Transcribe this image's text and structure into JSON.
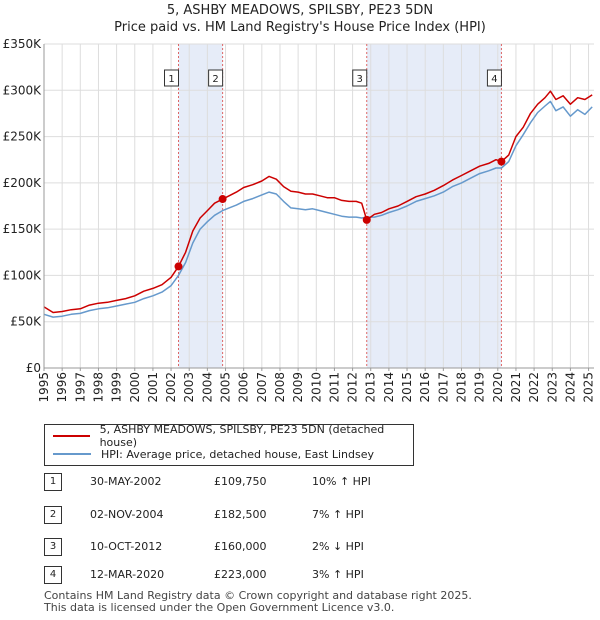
{
  "title": {
    "line1": "5, ASHBY MEADOWS, SPILSBY, PE23 5DN",
    "line2": "Price paid vs. HM Land Registry's House Price Index (HPI)"
  },
  "colors": {
    "property": "#cc0000",
    "hpi": "#6699cc",
    "band": "#e6ecf8",
    "marker_line": "#dd6666"
  },
  "legend": {
    "property_label": "5, ASHBY MEADOWS, SPILSBY, PE23 5DN (detached house)",
    "hpi_label": "HPI: Average price, detached house, East Lindsey"
  },
  "sales": [
    {
      "num": "1",
      "date": "30-MAY-2002",
      "price": "£109,750",
      "hpi": "10% ↑ HPI"
    },
    {
      "num": "2",
      "date": "02-NOV-2004",
      "price": "£182,500",
      "hpi": "7% ↑ HPI"
    },
    {
      "num": "3",
      "date": "10-OCT-2012",
      "price": "£160,000",
      "hpi": "2% ↓ HPI"
    },
    {
      "num": "4",
      "date": "12-MAR-2020",
      "price": "£223,000",
      "hpi": "3% ↑ HPI"
    }
  ],
  "footer": {
    "line1": "Contains HM Land Registry data © Crown copyright and database right 2025.",
    "line2": "This data is licensed under the Open Government Licence v3.0."
  },
  "chart_data": {
    "type": "line",
    "title": "Price paid vs. HM Land Registry's House Price Index (HPI)",
    "xlabel": "",
    "ylabel": "",
    "xlim": [
      1995,
      2025.3
    ],
    "ylim": [
      0,
      350000
    ],
    "x_ticks": [
      "1995",
      "1996",
      "1997",
      "1998",
      "1999",
      "2000",
      "2001",
      "2002",
      "2003",
      "2004",
      "2005",
      "2006",
      "2007",
      "2008",
      "2009",
      "2010",
      "2011",
      "2012",
      "2013",
      "2014",
      "2015",
      "2016",
      "2017",
      "2018",
      "2019",
      "2020",
      "2021",
      "2022",
      "2023",
      "2024",
      "2025"
    ],
    "y_ticks": [
      {
        "value": 0,
        "label": "£0"
      },
      {
        "value": 50000,
        "label": "£50K"
      },
      {
        "value": 100000,
        "label": "£100K"
      },
      {
        "value": 150000,
        "label": "£150K"
      },
      {
        "value": 200000,
        "label": "£200K"
      },
      {
        "value": 250000,
        "label": "£250K"
      },
      {
        "value": 300000,
        "label": "£300K"
      },
      {
        "value": 350000,
        "label": "£350K"
      }
    ],
    "shaded_ranges": [
      [
        2002.41,
        2004.84
      ],
      [
        2012.78,
        2020.2
      ]
    ],
    "sale_markers": [
      {
        "label": "1",
        "x": 2002.41,
        "y": 109750
      },
      {
        "label": "2",
        "x": 2004.84,
        "y": 182500
      },
      {
        "label": "3",
        "x": 2012.78,
        "y": 160000
      },
      {
        "label": "4",
        "x": 2020.2,
        "y": 223000
      }
    ],
    "series": [
      {
        "name": "5, ASHBY MEADOWS, SPILSBY, PE23 5DN (detached house)",
        "x": [
          1995,
          1995.5,
          1996,
          1996.5,
          1997,
          1997.5,
          1998,
          1998.5,
          1999,
          1999.5,
          2000,
          2000.5,
          2001,
          2001.5,
          2002,
          2002.41,
          2002.8,
          2003.2,
          2003.6,
          2004,
          2004.4,
          2004.84,
          2005.2,
          2005.6,
          2006,
          2006.5,
          2007,
          2007.4,
          2007.8,
          2008.2,
          2008.6,
          2009,
          2009.4,
          2009.8,
          2010.2,
          2010.6,
          2011,
          2011.4,
          2011.8,
          2012.2,
          2012.5,
          2012.78,
          2013.2,
          2013.6,
          2014,
          2014.5,
          2015,
          2015.5,
          2016,
          2016.5,
          2017,
          2017.5,
          2018,
          2018.5,
          2019,
          2019.5,
          2019.9,
          2020.2,
          2020.6,
          2021,
          2021.4,
          2021.8,
          2022.2,
          2022.6,
          2022.9,
          2023.2,
          2023.6,
          2024,
          2024.4,
          2024.8,
          2025.2
        ],
        "y": [
          66000,
          60000,
          61000,
          63000,
          64000,
          68000,
          70000,
          71000,
          73000,
          75000,
          78000,
          83000,
          86000,
          90000,
          98000,
          109750,
          125000,
          148000,
          162000,
          170000,
          178000,
          182500,
          186000,
          190000,
          195000,
          198000,
          202000,
          207000,
          204000,
          196000,
          191000,
          190000,
          188000,
          188000,
          186000,
          184000,
          184000,
          181000,
          180000,
          180000,
          178000,
          160000,
          166000,
          168000,
          172000,
          175000,
          180000,
          185000,
          188000,
          192000,
          197000,
          203000,
          208000,
          213000,
          218000,
          221000,
          225000,
          223000,
          230000,
          250000,
          260000,
          275000,
          285000,
          292000,
          299000,
          290000,
          294000,
          285000,
          292000,
          290000,
          295000
        ]
      },
      {
        "name": "HPI: Average price, detached house, East Lindsey",
        "x": [
          1995,
          1995.5,
          1996,
          1996.5,
          1997,
          1997.5,
          1998,
          1998.5,
          1999,
          1999.5,
          2000,
          2000.5,
          2001,
          2001.5,
          2002,
          2002.41,
          2002.8,
          2003.2,
          2003.6,
          2004,
          2004.4,
          2004.84,
          2005.2,
          2005.6,
          2006,
          2006.5,
          2007,
          2007.4,
          2007.8,
          2008.2,
          2008.6,
          2009,
          2009.4,
          2009.8,
          2010.2,
          2010.6,
          2011,
          2011.4,
          2011.8,
          2012.2,
          2012.5,
          2012.78,
          2013.2,
          2013.6,
          2014,
          2014.5,
          2015,
          2015.5,
          2016,
          2016.5,
          2017,
          2017.5,
          2018,
          2018.5,
          2019,
          2019.5,
          2019.9,
          2020.2,
          2020.6,
          2021,
          2021.4,
          2021.8,
          2022.2,
          2022.6,
          2022.9,
          2023.2,
          2023.6,
          2024,
          2024.4,
          2024.8,
          2025.2
        ],
        "y": [
          58000,
          55000,
          56000,
          58000,
          59000,
          62000,
          64000,
          65000,
          67000,
          69000,
          71000,
          75000,
          78000,
          82000,
          89000,
          100000,
          114000,
          135000,
          150000,
          158000,
          165000,
          170000,
          173000,
          176000,
          180000,
          183000,
          187000,
          190000,
          188000,
          180000,
          173000,
          172000,
          171000,
          172000,
          170000,
          168000,
          166000,
          164000,
          163000,
          163000,
          162000,
          163000,
          163000,
          165000,
          168000,
          171000,
          175000,
          180000,
          183000,
          186000,
          190000,
          196000,
          200000,
          205000,
          210000,
          213000,
          216000,
          216000,
          223000,
          240000,
          252000,
          265000,
          276000,
          283000,
          288000,
          278000,
          282000,
          272000,
          279000,
          274000,
          282000
        ]
      }
    ]
  }
}
